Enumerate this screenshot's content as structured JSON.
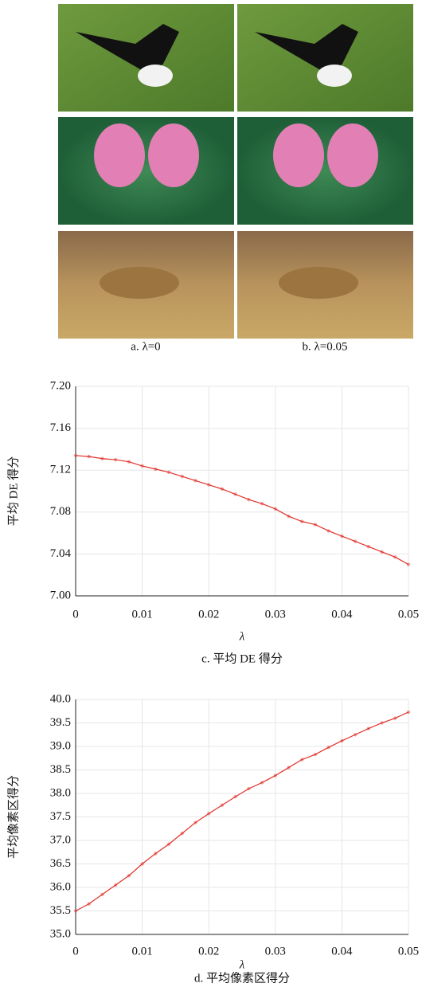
{
  "figure": {
    "captions": [
      "a. λ=0",
      "b. λ=0.05"
    ]
  },
  "chart_data": [
    {
      "type": "line",
      "caption": "c. 平均 DE 得分",
      "x_label": "λ",
      "y_label": "平均 DE 得分",
      "x": [
        0,
        0.002,
        0.004,
        0.006,
        0.008,
        0.01,
        0.012,
        0.014,
        0.016,
        0.018,
        0.02,
        0.022,
        0.024,
        0.026,
        0.028,
        0.03,
        0.032,
        0.034,
        0.036,
        0.038,
        0.04,
        0.042,
        0.044,
        0.046,
        0.048,
        0.05
      ],
      "series": [
        {
          "color": "#e0302a",
          "values": [
            7.134,
            7.133,
            7.131,
            7.13,
            7.128,
            7.124,
            7.121,
            7.118,
            7.114,
            7.11,
            7.106,
            7.102,
            7.097,
            7.092,
            7.088,
            7.083,
            7.076,
            7.071,
            7.068,
            7.062,
            7.057,
            7.052,
            7.047,
            7.042,
            7.037,
            7.03
          ]
        }
      ],
      "xlim": [
        0,
        0.05
      ],
      "xticks": [
        0,
        0.01,
        0.02,
        0.03,
        0.04,
        0.05
      ],
      "ylim": [
        7,
        7.2
      ],
      "yticks": [
        {
          "value": 7,
          "label": "7.00"
        },
        7.04,
        7.08,
        7.12,
        7.16,
        {
          "value": 7.2,
          "label": "7.20"
        }
      ],
      "grid": true
    },
    {
      "type": "line",
      "caption": "d. 平均像素区得分",
      "x_label": "λ",
      "y_label": "平均像素区得分",
      "x": [
        0,
        0.002,
        0.004,
        0.006,
        0.008,
        0.01,
        0.012,
        0.014,
        0.016,
        0.018,
        0.02,
        0.022,
        0.024,
        0.026,
        0.028,
        0.03,
        0.032,
        0.034,
        0.036,
        0.038,
        0.04,
        0.042,
        0.044,
        0.046,
        0.048,
        0.05
      ],
      "series": [
        {
          "color": "#e0302a",
          "values": [
            35.5,
            35.65,
            35.85,
            36.05,
            36.25,
            36.5,
            36.72,
            36.92,
            37.15,
            37.38,
            37.57,
            37.75,
            37.93,
            38.1,
            38.23,
            38.38,
            38.55,
            38.72,
            38.83,
            38.98,
            39.12,
            39.25,
            39.38,
            39.5,
            39.6,
            39.73
          ]
        }
      ],
      "xlim": [
        0,
        0.05
      ],
      "xticks": [
        0,
        0.01,
        0.02,
        0.03,
        0.04,
        0.05
      ],
      "ylim": [
        35,
        40
      ],
      "yticks": [
        {
          "value": 35,
          "label": "35.0"
        },
        35.5,
        {
          "value": 36,
          "label": "36.0"
        },
        36.5,
        {
          "value": 37,
          "label": "37.0"
        },
        37.5,
        {
          "value": 38,
          "label": "38.0"
        },
        38.5,
        {
          "value": 39,
          "label": "39.0"
        },
        39.5,
        {
          "value": 40,
          "label": "40.0"
        }
      ],
      "grid": true
    }
  ]
}
